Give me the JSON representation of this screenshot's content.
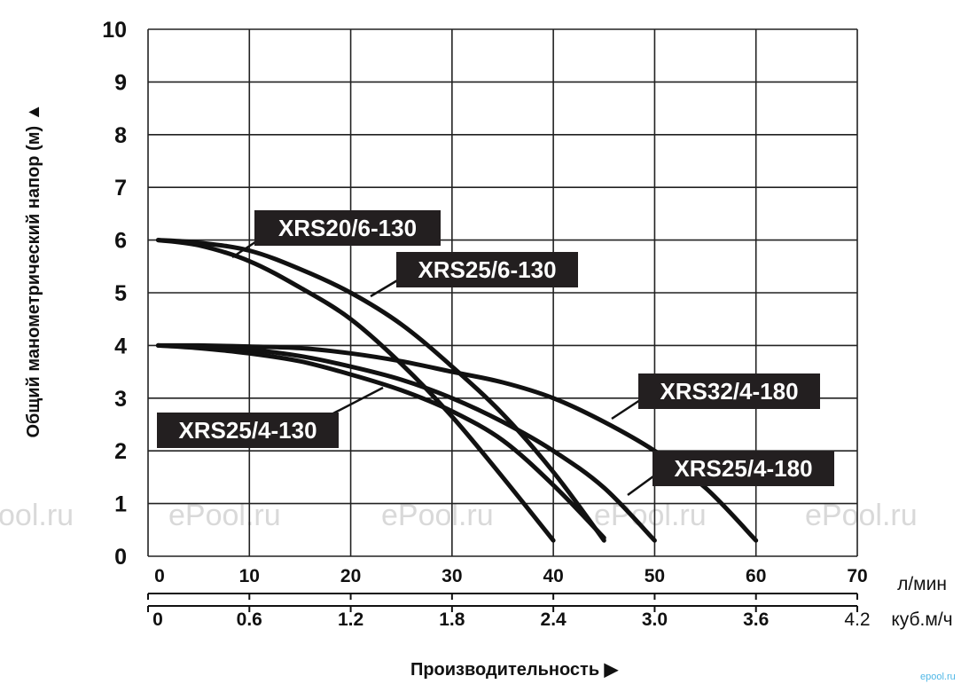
{
  "chart_data": {
    "type": "line",
    "ylabel": "Общий манометрический напор (м) ▲",
    "xlabel": "Производительность ▶",
    "y_ticks": [
      "0",
      "1",
      "2",
      "3",
      "4",
      "5",
      "6",
      "7",
      "8",
      "9",
      "10"
    ],
    "x_ticks_primary": [
      "0",
      "10",
      "20",
      "30",
      "40",
      "50",
      "60",
      "70"
    ],
    "x_unit_primary": "л/мин",
    "x_ticks_secondary": [
      "0",
      "0.6",
      "1.2",
      "1.8",
      "2.4",
      "3.0",
      "3.6",
      "4.2"
    ],
    "x_unit_secondary": "куб.м/ч",
    "xlim": [
      0,
      70
    ],
    "ylim": [
      0,
      10
    ],
    "grid": true,
    "series": [
      {
        "name": "XRS20/6-130",
        "x": [
          1,
          5,
          10,
          15,
          20,
          25,
          30,
          35,
          40
        ],
        "y": [
          6.0,
          5.9,
          5.6,
          5.1,
          4.5,
          3.65,
          2.65,
          1.5,
          0.3
        ]
      },
      {
        "name": "XRS25/6-130",
        "x": [
          1,
          5,
          10,
          15,
          20,
          25,
          30,
          35,
          40,
          45
        ],
        "y": [
          6.0,
          5.95,
          5.8,
          5.45,
          5.0,
          4.4,
          3.6,
          2.7,
          1.6,
          0.3
        ]
      },
      {
        "name": "XRS25/4-130",
        "x": [
          1,
          5,
          10,
          15,
          20,
          25,
          30,
          35,
          40,
          45
        ],
        "y": [
          4.0,
          3.95,
          3.85,
          3.7,
          3.45,
          3.15,
          2.75,
          2.2,
          1.35,
          0.35
        ]
      },
      {
        "name": "XRS25/4-180",
        "x": [
          1,
          5,
          10,
          15,
          20,
          25,
          30,
          35,
          40,
          45,
          50
        ],
        "y": [
          4.0,
          3.98,
          3.92,
          3.8,
          3.6,
          3.35,
          3.0,
          2.55,
          2.0,
          1.3,
          0.3
        ]
      },
      {
        "name": "XRS32/4-180",
        "x": [
          1,
          5,
          10,
          15,
          20,
          25,
          30,
          35,
          40,
          45,
          50,
          55,
          60
        ],
        "y": [
          4.0,
          4.0,
          3.98,
          3.95,
          3.85,
          3.7,
          3.5,
          3.3,
          3.0,
          2.55,
          2.0,
          1.3,
          0.3
        ]
      }
    ]
  },
  "watermark": {
    "text": "ePool.ru",
    "text_partial": "ool.ru",
    "corner": "epool.ru"
  }
}
